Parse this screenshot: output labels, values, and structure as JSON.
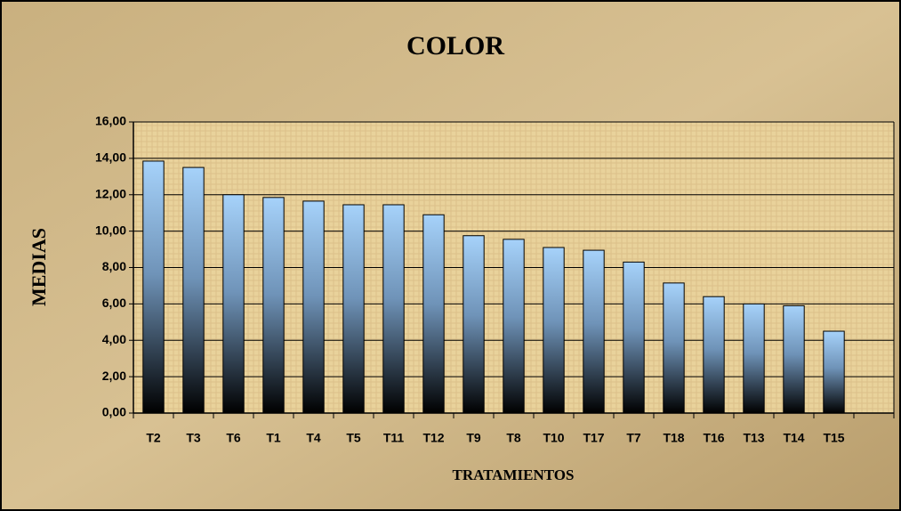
{
  "chart_data": {
    "type": "bar",
    "title": "COLOR",
    "x_label": "TRATAMIENTOS",
    "y_label": "MEDIAS",
    "categories": [
      "T2",
      "T3",
      "T6",
      "T1",
      "T4",
      "T5",
      "T11",
      "T12",
      "T9",
      "T8",
      "T10",
      "T17",
      "T7",
      "T18",
      "T16",
      "T13",
      "T14",
      "T15",
      null
    ],
    "values": [
      13.85,
      13.5,
      12.0,
      11.85,
      11.65,
      11.45,
      11.45,
      10.9,
      9.75,
      9.55,
      9.1,
      8.95,
      8.3,
      7.15,
      6.4,
      6.0,
      5.9,
      4.5,
      null
    ],
    "color": "#a6d2fa",
    "ylim": [
      0,
      16
    ],
    "yticks": [
      {
        "value": 0,
        "label": "0,00"
      },
      {
        "value": 2,
        "label": "2,00"
      },
      {
        "value": 4,
        "label": "4,00"
      },
      {
        "value": 6,
        "label": "6,00"
      },
      {
        "value": 8,
        "label": "8,00"
      },
      {
        "value": 10,
        "label": "10,00"
      },
      {
        "value": 12,
        "label": "12,00"
      },
      {
        "value": 14,
        "label": "14,00"
      },
      {
        "value": 16,
        "label": "16,00"
      }
    ],
    "grid": true
  }
}
